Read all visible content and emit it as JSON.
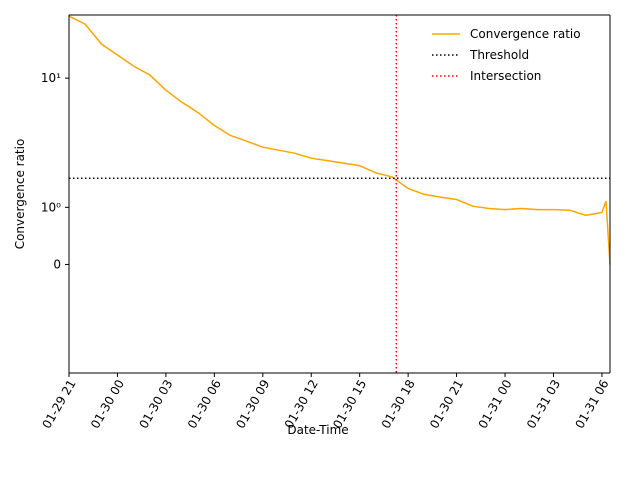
{
  "chart_data": {
    "type": "line",
    "xlabel": "Date-Time",
    "ylabel": "Convergence ratio",
    "yscale": "symlog",
    "linthresh": 1,
    "xlim": [
      "01-29 21:00",
      "01-31 06:30"
    ],
    "ylim": [
      -2.5,
      30.8
    ],
    "xticks": [
      {
        "value": "01-29 21:00",
        "label": "01-29 21"
      },
      {
        "value": "01-30 00:00",
        "label": "01-30 00"
      },
      {
        "value": "01-30 03:00",
        "label": "01-30 03"
      },
      {
        "value": "01-30 06:00",
        "label": "01-30 06"
      },
      {
        "value": "01-30 09:00",
        "label": "01-30 09"
      },
      {
        "value": "01-30 12:00",
        "label": "01-30 12"
      },
      {
        "value": "01-30 15:00",
        "label": "01-30 15"
      },
      {
        "value": "01-30 18:00",
        "label": "01-30 18"
      },
      {
        "value": "01-30 21:00",
        "label": "01-30 21"
      },
      {
        "value": "01-31 00:00",
        "label": "01-31 00"
      },
      {
        "value": "01-31 03:00",
        "label": "01-31 03"
      },
      {
        "value": "01-31 06:00",
        "label": "01-31 06"
      }
    ],
    "yticks": [
      0,
      {
        "value": 1,
        "label": "10⁰"
      },
      {
        "value": 10,
        "label": "10¹"
      }
    ],
    "legend": "upper right",
    "x": [
      "01-29 21:00",
      "01-29 22:00",
      "01-29 23:00",
      "01-30 00:00",
      "01-30 01:00",
      "01-30 02:00",
      "01-30 03:00",
      "01-30 04:00",
      "01-30 05:00",
      "01-30 06:00",
      "01-30 07:00",
      "01-30 08:00",
      "01-30 09:00",
      "01-30 10:00",
      "01-30 11:00",
      "01-30 12:00",
      "01-30 13:00",
      "01-30 14:00",
      "01-30 15:00",
      "01-30 16:00",
      "01-30 17:00",
      "01-30 18:00",
      "01-30 19:00",
      "01-30 20:00",
      "01-30 21:00",
      "01-30 22:00",
      "01-30 23:00",
      "01-31 00:00",
      "01-31 01:00",
      "01-31 02:00",
      "01-31 03:00",
      "01-31 04:00",
      "01-31 05:00",
      "01-31 06:00",
      "01-31 06:15",
      "01-31 06:30"
    ],
    "series": [
      {
        "name": "Convergence ratio",
        "color": "#ffa500",
        "values": [
          30.2,
          26.2,
          18.4,
          15.1,
          12.4,
          10.6,
          8.07,
          6.5,
          5.4,
          4.3,
          3.6,
          3.25,
          2.92,
          2.77,
          2.62,
          2.4,
          2.3,
          2.2,
          2.1,
          1.85,
          1.72,
          1.4,
          1.26,
          1.2,
          1.15,
          1.02,
          0.98,
          0.96,
          0.98,
          0.96,
          0.96,
          0.95,
          0.86,
          0.91,
          1.12,
          0
        ]
      }
    ],
    "threshold": {
      "name": "Threshold",
      "value": 1.68,
      "color": "#000000"
    },
    "intersection": {
      "name": "Intersection",
      "x": "01-30 17:16",
      "color": "#ff0000"
    }
  }
}
